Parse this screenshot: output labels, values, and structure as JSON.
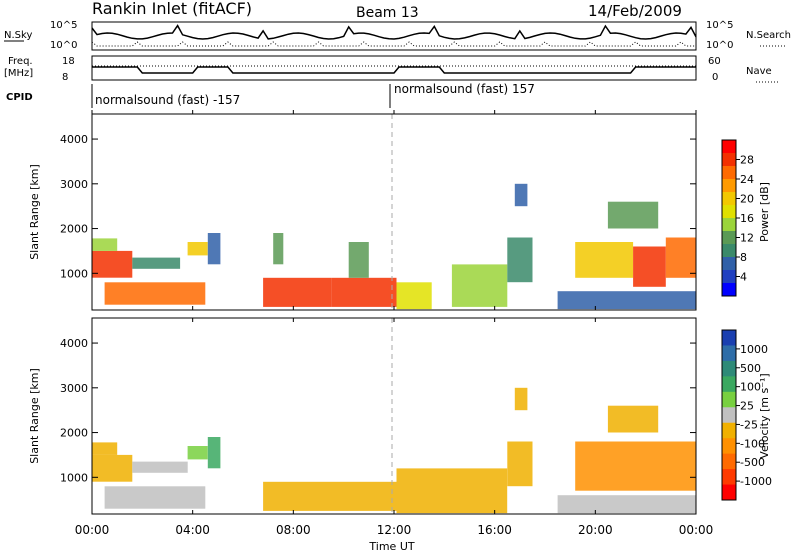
{
  "header": {
    "station": "Rankin Inlet (fitACF)",
    "beam": "Beam 13",
    "date": "14/Feb/2009"
  },
  "summary_panels": {
    "nsky_label": "N.Sky",
    "nsky_ticks": [
      "10^5",
      "10^0"
    ],
    "nsearch_label": "N.Search",
    "nsearch_ticks": [
      "10^5",
      "10^0"
    ],
    "freq_label_top": "Freq.",
    "freq_label_unit": "[MHz]",
    "freq_ticks": [
      "18",
      "8"
    ],
    "nave_label": "Nave",
    "nave_ticks": [
      "60",
      "0"
    ],
    "cpid_label": "CPID",
    "cpid_segments": [
      "normalsound (fast) -157",
      "normalsound (fast) 157"
    ]
  },
  "colorbars": {
    "power": {
      "label": "Power [dB]",
      "ticks": [
        "28",
        "24",
        "20",
        "16",
        "12",
        "8",
        "4"
      ],
      "colors": [
        "#ff0000",
        "#f33000",
        "#ff6a00",
        "#ff9a00",
        "#f2c800",
        "#e0e000",
        "#9bd43a",
        "#5a9a55",
        "#3a8a6a",
        "#3060a8",
        "#2040c0",
        "#0000ff"
      ]
    },
    "velocity": {
      "label": "Velocity [m s⁻¹]",
      "ticks": [
        "1000",
        "500",
        "100",
        "25",
        "-25",
        "-100",
        "-500",
        "-1000"
      ],
      "colors": [
        "#1a3fb0",
        "#2e6da8",
        "#2e8a78",
        "#3aa860",
        "#78d040",
        "#c0c0c0",
        "#f0b000",
        "#ff9000",
        "#ff6a00",
        "#ff3a00",
        "#ff0000"
      ]
    }
  },
  "x_axis": {
    "label": "Time UT",
    "ticks": [
      "00:00",
      "04:00",
      "08:00",
      "12:00",
      "16:00",
      "20:00",
      "00:00"
    ]
  },
  "chart_data": [
    {
      "type": "heatmap",
      "name": "Power",
      "ylabel": "Slant Range [km]",
      "xlabel": "Time UT",
      "xlim_hours": [
        0,
        24
      ],
      "ylim_km": [
        180,
        4560
      ],
      "y_ticks": [
        1000,
        2000,
        3000,
        4000
      ],
      "value_range": [
        3,
        30
      ],
      "grid": false,
      "cells": [
        {
          "t": [
            0.0,
            1.6
          ],
          "r": [
            900,
            1500
          ],
          "v": 27
        },
        {
          "t": [
            0.0,
            1.0
          ],
          "r": [
            1500,
            1780
          ],
          "v": 16
        },
        {
          "t": [
            0.5,
            4.5
          ],
          "r": [
            300,
            800
          ],
          "v": 25
        },
        {
          "t": [
            1.6,
            3.5
          ],
          "r": [
            1100,
            1350
          ],
          "v": 10
        },
        {
          "t": [
            3.8,
            4.6
          ],
          "r": [
            1400,
            1700
          ],
          "v": 20
        },
        {
          "t": [
            4.6,
            5.1
          ],
          "r": [
            1200,
            1900
          ],
          "v": 8
        },
        {
          "t": [
            6.8,
            9.5
          ],
          "r": [
            250,
            900
          ],
          "v": 27
        },
        {
          "t": [
            9.5,
            12.1
          ],
          "r": [
            250,
            900
          ],
          "v": 28
        },
        {
          "t": [
            7.2,
            7.6
          ],
          "r": [
            1200,
            1900
          ],
          "v": 12
        },
        {
          "t": [
            10.2,
            11.0
          ],
          "r": [
            900,
            1700
          ],
          "v": 14
        },
        {
          "t": [
            12.1,
            13.5
          ],
          "r": [
            200,
            800
          ],
          "v": 18
        },
        {
          "t": [
            14.3,
            16.5
          ],
          "r": [
            250,
            1200
          ],
          "v": 16
        },
        {
          "t": [
            16.5,
            17.5
          ],
          "r": [
            800,
            1800
          ],
          "v": 11
        },
        {
          "t": [
            16.8,
            17.3
          ],
          "r": [
            2500,
            3000
          ],
          "v": 7
        },
        {
          "t": [
            19.2,
            21.5
          ],
          "r": [
            900,
            1700
          ],
          "v": 20
        },
        {
          "t": [
            21.5,
            22.8
          ],
          "r": [
            700,
            1600
          ],
          "v": 27
        },
        {
          "t": [
            22.8,
            24.0
          ],
          "r": [
            900,
            1800
          ],
          "v": 24
        },
        {
          "t": [
            20.5,
            22.5
          ],
          "r": [
            2000,
            2600
          ],
          "v": 14
        },
        {
          "t": [
            18.5,
            24.0
          ],
          "r": [
            200,
            600
          ],
          "v": 9
        }
      ]
    },
    {
      "type": "heatmap",
      "name": "Velocity",
      "ylabel": "Slant Range [km]",
      "xlabel": "Time UT",
      "xlim_hours": [
        0,
        24
      ],
      "ylim_km": [
        180,
        4560
      ],
      "y_ticks": [
        1000,
        2000,
        3000,
        4000
      ],
      "value_range": [
        -1000,
        1000
      ],
      "grid": false,
      "cells": [
        {
          "t": [
            0.0,
            1.6
          ],
          "r": [
            900,
            1500
          ],
          "v": -250
        },
        {
          "t": [
            0.0,
            1.0
          ],
          "r": [
            1500,
            1780
          ],
          "v": -100
        },
        {
          "t": [
            0.5,
            4.5
          ],
          "r": [
            300,
            800
          ],
          "v": 60
        },
        {
          "t": [
            1.6,
            3.8
          ],
          "r": [
            1100,
            1350
          ],
          "v": 0
        },
        {
          "t": [
            3.8,
            4.6
          ],
          "r": [
            1400,
            1700
          ],
          "v": 300
        },
        {
          "t": [
            4.6,
            5.1
          ],
          "r": [
            1200,
            1900
          ],
          "v": 400
        },
        {
          "t": [
            6.8,
            12.1
          ],
          "r": [
            250,
            900
          ],
          "v": -200
        },
        {
          "t": [
            12.1,
            16.5
          ],
          "r": [
            200,
            1200
          ],
          "v": -250
        },
        {
          "t": [
            16.5,
            17.5
          ],
          "r": [
            800,
            1800
          ],
          "v": -150
        },
        {
          "t": [
            16.8,
            17.3
          ],
          "r": [
            2500,
            3000
          ],
          "v": -250
        },
        {
          "t": [
            19.2,
            24.0
          ],
          "r": [
            700,
            1800
          ],
          "v": -300
        },
        {
          "t": [
            20.5,
            22.5
          ],
          "r": [
            2000,
            2600
          ],
          "v": -200
        },
        {
          "t": [
            18.5,
            24.0
          ],
          "r": [
            200,
            600
          ],
          "v": 50
        }
      ]
    }
  ]
}
